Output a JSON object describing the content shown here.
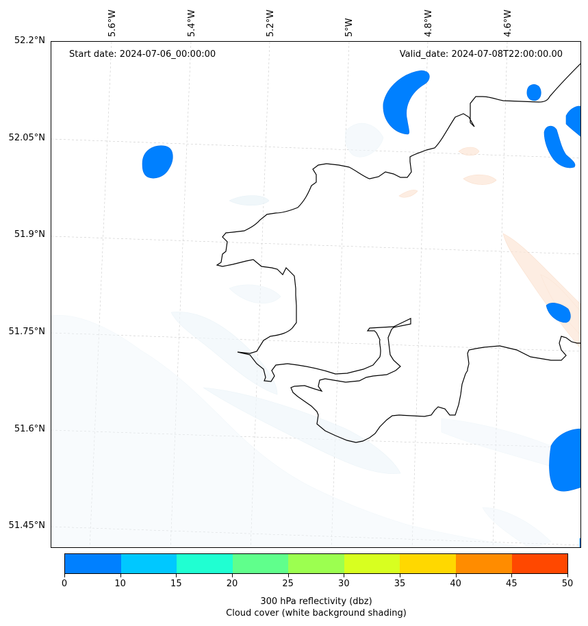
{
  "map": {
    "start_date": "Start date: 2024-07-06_00:00:00",
    "valid_date": "Valid_date: 2024-07-08T22:00:00.00",
    "lon_labels": [
      "5.6°W",
      "5.4°W",
      "5.2°W",
      "5°W",
      "4.8°W",
      "4.6°W"
    ],
    "lat_labels": [
      "52.2°N",
      "52.05°N",
      "51.9°N",
      "51.75°N",
      "51.6°N",
      "51.45°N"
    ],
    "gridlines": true,
    "coastline_color": "#000000",
    "reflectivity_blob_color": "#0080ff",
    "cloud_shading_color": "#eef6fa",
    "warm_shading_color": "#fde6d6"
  },
  "colorbar": {
    "ticks": [
      "0",
      "10",
      "15",
      "20",
      "25",
      "30",
      "35",
      "40",
      "45",
      "50"
    ],
    "colors": [
      "#0080ff",
      "#00c8ff",
      "#20ffd2",
      "#60ff8c",
      "#9cff50",
      "#d8ff20",
      "#ffd800",
      "#ff8c00",
      "#ff4800"
    ],
    "label_line1": "300 hPa reflectivity (dbz)",
    "label_line2": "Cloud cover (white background shading)"
  }
}
